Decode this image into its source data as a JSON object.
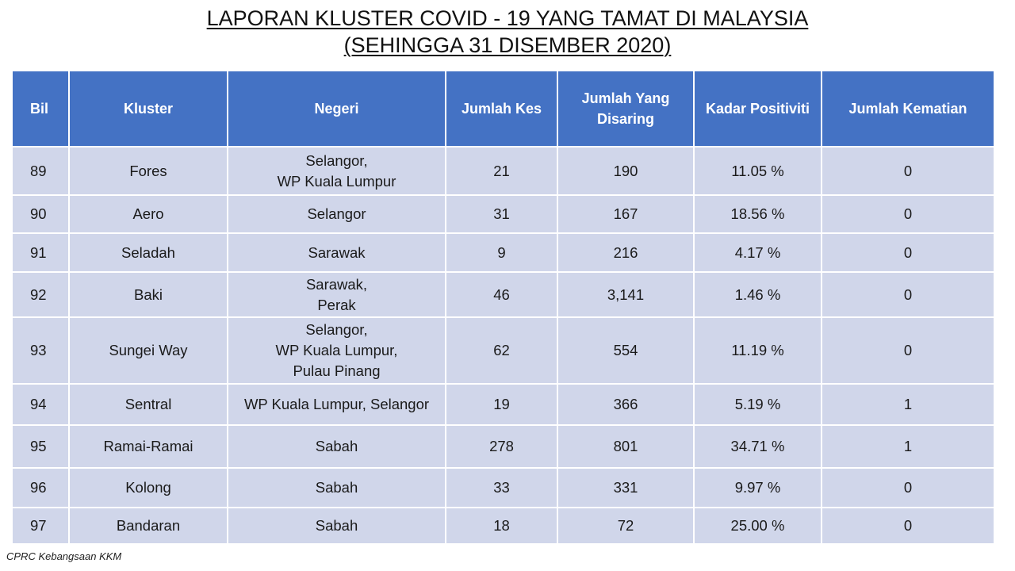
{
  "title": {
    "line1": "LAPORAN KLUSTER COVID - 19 YANG TAMAT DI MALAYSIA",
    "line2": "(SEHINGGA 31 DISEMBER 2020)"
  },
  "table": {
    "headers": [
      "Bil",
      "Kluster",
      "Negeri",
      "Jumlah Kes",
      "Jumlah Yang\nDisaring",
      "Kadar Positiviti",
      "Jumlah Kematian"
    ],
    "rows": [
      [
        "89",
        "Fores",
        "Selangor,\nWP Kuala Lumpur",
        "21",
        "190",
        "11.05 %",
        "0"
      ],
      [
        "90",
        "Aero",
        "Selangor",
        "31",
        "167",
        "18.56 %",
        "0"
      ],
      [
        "91",
        "Seladah",
        "Sarawak",
        "9",
        "216",
        "4.17 %",
        "0"
      ],
      [
        "92",
        "Baki",
        "Sarawak,\nPerak",
        "46",
        "3,141",
        "1.46 %",
        "0"
      ],
      [
        "93",
        "Sungei Way",
        "Selangor,\nWP Kuala Lumpur,\nPulau Pinang",
        "62",
        "554",
        "11.19 %",
        "0"
      ],
      [
        "94",
        "Sentral",
        "WP Kuala Lumpur, Selangor",
        "19",
        "366",
        "5.19 %",
        "1"
      ],
      [
        "95",
        "Ramai-Ramai",
        "Sabah",
        "278",
        "801",
        "34.71 %",
        "1"
      ],
      [
        "96",
        "Kolong",
        "Sabah",
        "33",
        "331",
        "9.97 %",
        "0"
      ],
      [
        "97",
        "Bandaran",
        "Sabah",
        "18",
        "72",
        "25.00 %",
        "0"
      ]
    ]
  },
  "source": "CPRC Kebangsaan KKM",
  "colors": {
    "header_bg": "#4472c4",
    "row_bg": "#d0d6ea"
  }
}
